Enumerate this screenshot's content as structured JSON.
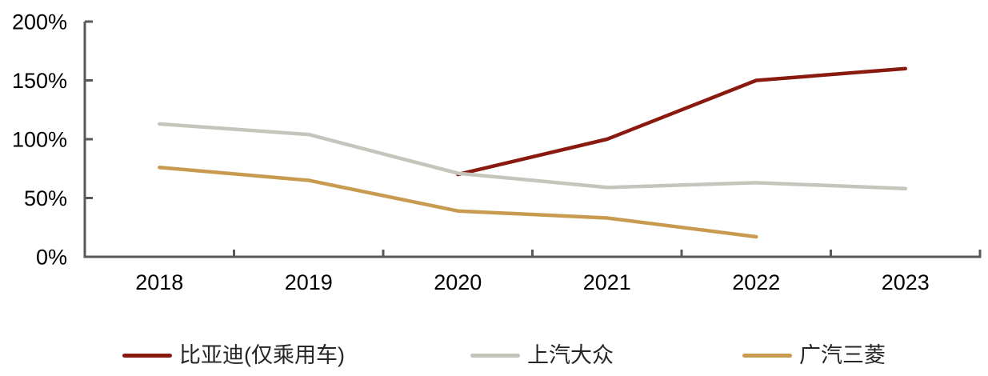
{
  "chart_data": {
    "type": "line",
    "x": [
      "2018",
      "2019",
      "2020",
      "2021",
      "2022",
      "2023"
    ],
    "y_ticks": [
      0,
      50,
      100,
      150,
      200
    ],
    "y_tick_labels": [
      "0%",
      "50%",
      "100%",
      "150%",
      "200%"
    ],
    "ylim": [
      0,
      200
    ],
    "grid": false,
    "legend_position": "bottom",
    "axis_color": "#595959",
    "label_color": "#000000",
    "series": [
      {
        "name": "比亚迪(仅乘用车)",
        "color": "#8A1A10",
        "values": [
          null,
          null,
          70,
          100,
          150,
          160
        ]
      },
      {
        "name": "上汽大众",
        "color": "#C6C5BB",
        "values": [
          113,
          104,
          71,
          59,
          63,
          58
        ]
      },
      {
        "name": "广汽三菱",
        "color": "#C99B51",
        "values": [
          76,
          65,
          39,
          33,
          17,
          null
        ]
      }
    ]
  }
}
